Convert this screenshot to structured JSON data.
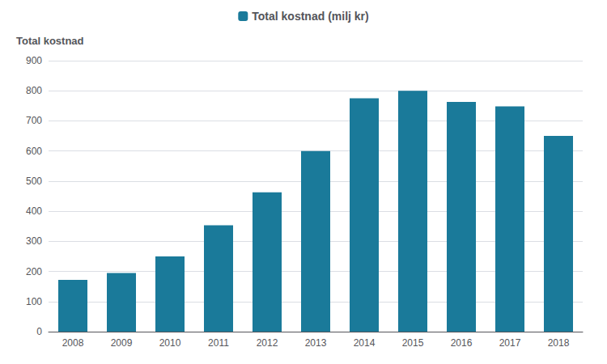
{
  "chart_data": {
    "type": "bar",
    "ylabel": "Total kostnad",
    "categories": [
      "2008",
      "2009",
      "2010",
      "2011",
      "2012",
      "2013",
      "2014",
      "2015",
      "2016",
      "2017",
      "2018"
    ],
    "series": [
      {
        "name": "Total kostnad (milj kr)",
        "color": "#1a7a9a",
        "values": [
          172,
          195,
          250,
          353,
          463,
          600,
          775,
          800,
          763,
          748,
          650
        ]
      }
    ],
    "ylim": [
      0,
      900
    ],
    "yticks": [
      0,
      100,
      200,
      300,
      400,
      500,
      600,
      700,
      800,
      900
    ],
    "grid": true,
    "legend": "top"
  }
}
